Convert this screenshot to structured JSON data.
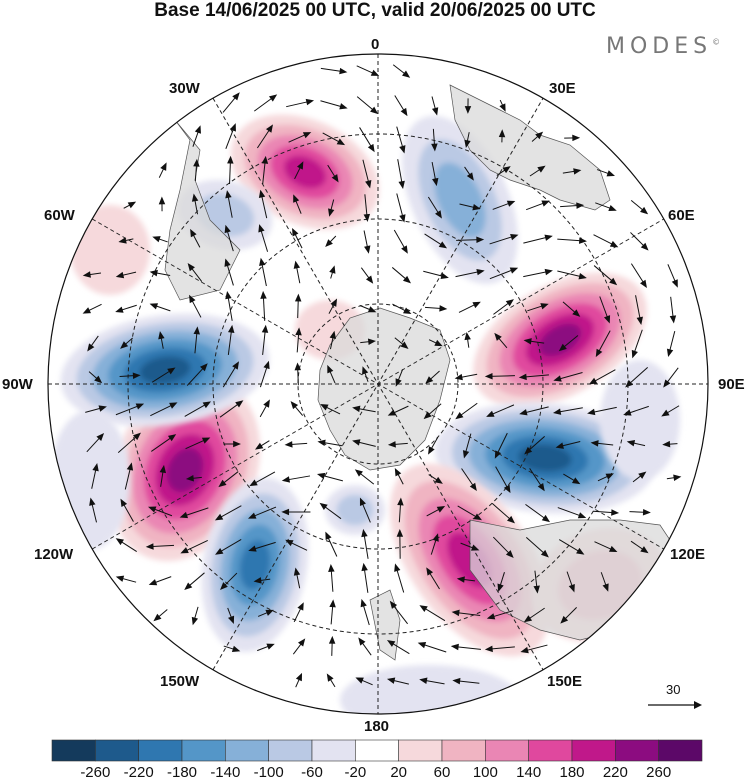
{
  "title": "Base 14/06/2025 00 UTC, valid 20/06/2025 00 UTC",
  "brand": "MODES",
  "brand_mark": "©",
  "longitude_labels": {
    "l0": "0",
    "l30e": "30E",
    "l60e": "60E",
    "l90e": "90E",
    "l120e": "120E",
    "l150e": "150E",
    "l180": "180",
    "l150w": "150W",
    "l120w": "120W",
    "l90w": "90W",
    "l60w": "60W",
    "l30w": "30W"
  },
  "wind_scale": "30",
  "colorbar": {
    "labels": [
      "-260",
      "-220",
      "-180",
      "-140",
      "-100",
      "-60",
      "-20",
      "20",
      "60",
      "100",
      "140",
      "180",
      "220",
      "260"
    ],
    "colors": [
      "#143a5c",
      "#1e5a8c",
      "#2f77b0",
      "#5496c8",
      "#86b0d8",
      "#bac9e4",
      "#e3e3f1",
      "#ffffff",
      "#f6d9dc",
      "#f0b4c2",
      "#ea86b4",
      "#e0489e",
      "#c0188a",
      "#8c0c80",
      "#5c0868"
    ]
  }
}
